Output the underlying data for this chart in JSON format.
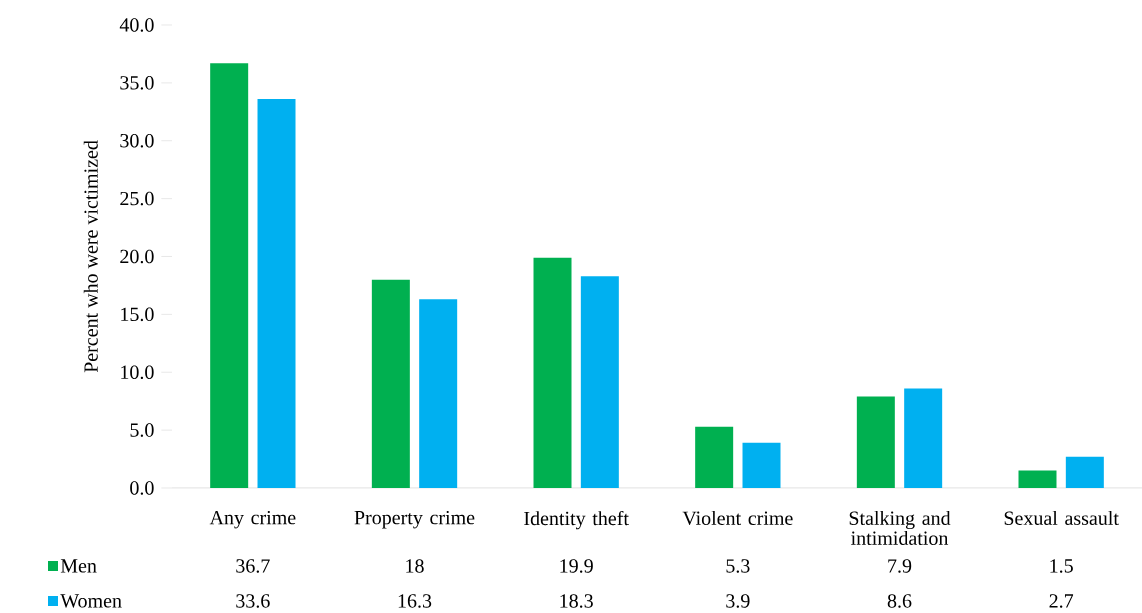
{
  "chart_data": {
    "type": "bar",
    "ylabel": "Percent who were victimized",
    "categories": [
      "Any crime",
      "Property crime",
      "Identity theft",
      "Violent crime",
      "Stalking and intimidation",
      "Sexual assault"
    ],
    "series": [
      {
        "name": "Men",
        "color": "#00b050",
        "values": [
          36.7,
          18,
          19.9,
          5.3,
          7.9,
          1.5
        ]
      },
      {
        "name": "Women",
        "color": "#00b0f0",
        "values": [
          33.6,
          16.3,
          18.3,
          3.9,
          8.6,
          2.7
        ]
      }
    ],
    "ylim": [
      0,
      40
    ],
    "yticks": [
      {
        "value": 0,
        "label": "0.0"
      },
      {
        "value": 5,
        "label": "5.0"
      },
      {
        "value": 10,
        "label": "10.0"
      },
      {
        "value": 15,
        "label": "15.0"
      },
      {
        "value": 20,
        "label": "20.0"
      },
      {
        "value": 25,
        "label": "25.0"
      },
      {
        "value": 30,
        "label": "30.0"
      },
      {
        "value": 35,
        "label": "35.0"
      },
      {
        "value": 40,
        "label": "40.0"
      }
    ],
    "grid": false,
    "legend": "bottom",
    "data_labels": true
  }
}
